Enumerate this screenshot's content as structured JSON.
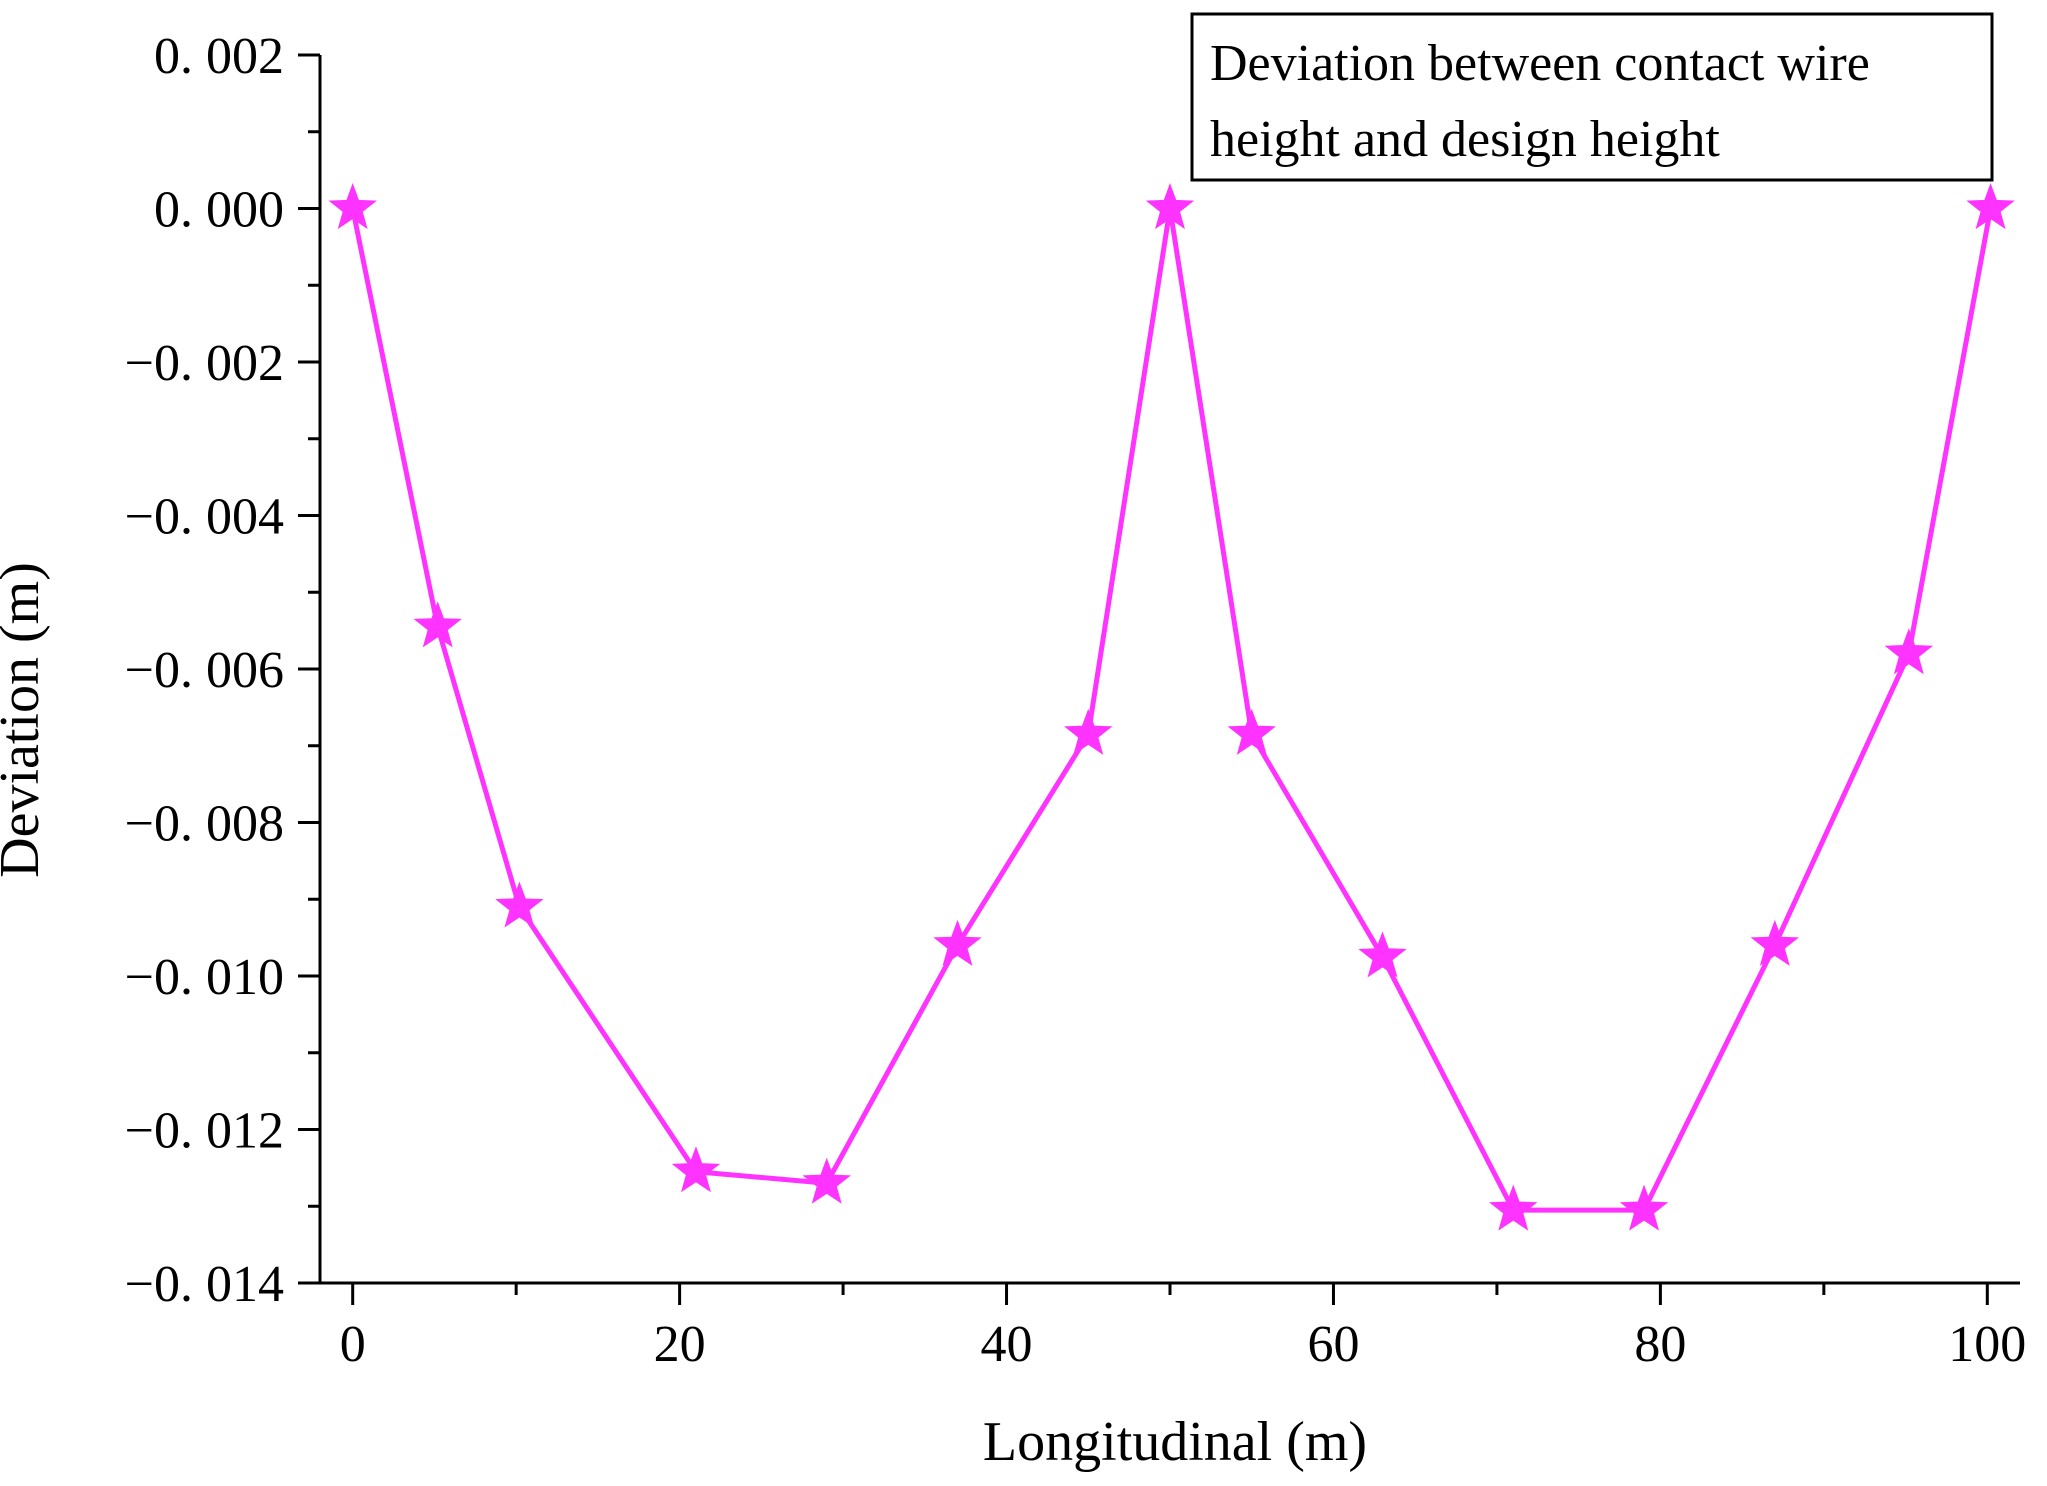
{
  "chart_data": {
    "type": "line",
    "title": "",
    "xlabel": "Longitudinal (m)",
    "ylabel": "Deviation (m)",
    "xlim": [
      -2,
      102
    ],
    "ylim": [
      -0.014,
      0.002
    ],
    "x_ticks": [
      0,
      20,
      40,
      60,
      80,
      100
    ],
    "x_tick_labels": [
      "0",
      "20",
      "40",
      "60",
      "80",
      "100"
    ],
    "y_ticks": [
      0.002,
      0.0,
      -0.002,
      -0.004,
      -0.006,
      -0.008,
      -0.01,
      -0.012,
      -0.014
    ],
    "y_tick_labels": [
      "0. 002",
      "0. 000",
      "−0. 002",
      "−0. 004",
      "−0. 006",
      "−0. 008",
      "−0. 010",
      "−0. 012",
      "−0. 014"
    ],
    "grid": false,
    "legend": {
      "position": "top-right",
      "lines": [
        "Deviation between contact wire",
        "height and design height"
      ]
    },
    "series": [
      {
        "name": "Deviation between contact wire height and design height",
        "color": "#FF33FF",
        "marker": "star",
        "x": [
          0,
          5.2,
          10.2,
          21,
          29,
          37,
          45,
          50,
          55,
          63,
          71,
          79,
          87,
          95.2,
          100.2
        ],
        "y": [
          0.0,
          -0.00545,
          -0.0091,
          -0.01255,
          -0.0127,
          -0.0096,
          -0.00685,
          0.0,
          -0.00685,
          -0.00975,
          -0.01305,
          -0.01305,
          -0.0096,
          -0.0058,
          0.0
        ]
      }
    ]
  }
}
